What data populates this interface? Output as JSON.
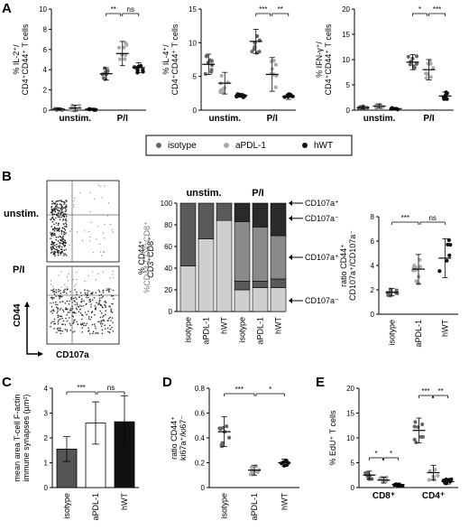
{
  "panels": {
    "A": "A",
    "B": "B",
    "C": "C",
    "D": "D",
    "E": "E"
  },
  "legend": [
    "isotype",
    "aPDL-1",
    "hWT"
  ],
  "colors": {
    "isotype": "#666666",
    "aPDL1": "#aaaaaa",
    "hWT": "#111111"
  },
  "flow": {
    "unstim_label": "unstim.",
    "pi_label": "P/I",
    "ylabel": "CD44",
    "xlabel": "CD107a"
  },
  "chart_data": [
    {
      "id": "A1",
      "type": "scatter",
      "title": "",
      "ylabel": [
        "% IL-2⁺/",
        "CD4⁺CD44⁺ T cells"
      ],
      "ylim": [
        0,
        10
      ],
      "yticks": [
        0,
        2,
        4,
        6,
        8,
        10
      ],
      "categories": [
        "unstim.",
        "P/I"
      ],
      "series_names": [
        "isotype",
        "aPDL-1",
        "hWT"
      ],
      "means": [
        [
          0.1,
          0.2,
          0.1
        ],
        [
          3.6,
          5.6,
          4.2
        ]
      ],
      "sd": [
        [
          0.1,
          0.3,
          0.1
        ],
        [
          0.6,
          1.2,
          0.5
        ]
      ],
      "sig": [
        {
          "from": [
            1,
            0
          ],
          "to": [
            1,
            1
          ],
          "label": "**"
        },
        {
          "from": [
            1,
            1
          ],
          "to": [
            1,
            2
          ],
          "label": "ns"
        }
      ]
    },
    {
      "id": "A2",
      "type": "scatter",
      "title": "",
      "ylabel": [
        "% IL-4⁺/",
        "CD4⁺CD44⁺ T cells"
      ],
      "ylim": [
        0,
        15
      ],
      "yticks": [
        0,
        5,
        10,
        15
      ],
      "categories": [
        "unstim.",
        "P/I"
      ],
      "series_names": [
        "isotype",
        "aPDL-1",
        "hWT"
      ],
      "means": [
        [
          6.8,
          4.0,
          2.2
        ],
        [
          10.2,
          5.3,
          2.0
        ]
      ],
      "sd": [
        [
          1.5,
          1.6,
          0.3
        ],
        [
          1.8,
          2.5,
          0.4
        ]
      ],
      "sig": [
        {
          "from": [
            1,
            0
          ],
          "to": [
            1,
            1
          ],
          "label": "***"
        },
        {
          "from": [
            1,
            1
          ],
          "to": [
            1,
            2
          ],
          "label": "**"
        }
      ]
    },
    {
      "id": "A3",
      "type": "scatter",
      "title": "",
      "ylabel": [
        "% IFN-γ⁺/",
        "CD4⁺CD44⁺ T cells"
      ],
      "ylim": [
        0,
        20
      ],
      "yticks": [
        0,
        5,
        10,
        15,
        20
      ],
      "categories": [
        "unstim.",
        "P/I"
      ],
      "series_names": [
        "isotype",
        "aPDL-1",
        "hWT"
      ],
      "means": [
        [
          0.5,
          0.8,
          0.3
        ],
        [
          9.5,
          8.0,
          2.8
        ]
      ],
      "sd": [
        [
          0.3,
          0.4,
          0.2
        ],
        [
          1.5,
          2.0,
          0.8
        ]
      ],
      "sig": [
        {
          "from": [
            1,
            0
          ],
          "to": [
            1,
            1
          ],
          "label": "*"
        },
        {
          "from": [
            1,
            1
          ],
          "to": [
            1,
            2
          ],
          "label": "***"
        }
      ]
    },
    {
      "id": "B2",
      "type": "bar",
      "title": "",
      "ylabel": [
        "% CD44⁺",
        "CD3⁺CD8⁺"
      ],
      "ylabel2": "%CD44-CD3⁺CD8⁺",
      "ylim": [
        0,
        100
      ],
      "yticks": [
        0,
        20,
        40,
        60,
        80,
        100
      ],
      "group_labels": [
        "unstim.",
        "P/I"
      ],
      "categories": [
        "isotype",
        "aPDL-1",
        "hWT",
        "isotype",
        "aPDL-1",
        "hWT"
      ],
      "stacks": [
        [
          42,
          58,
          0,
          0
        ],
        [
          67,
          33,
          0,
          0
        ],
        [
          84,
          16,
          0,
          0
        ],
        [
          20,
          8,
          55,
          17
        ],
        [
          22,
          6,
          50,
          22
        ],
        [
          22,
          8,
          40,
          30
        ]
      ],
      "segment_labels": [
        "CD107a⁺",
        "CD107a⁻",
        "CD107a⁺",
        "CD107a⁻"
      ]
    },
    {
      "id": "B3",
      "type": "scatter",
      "title": "",
      "ylabel": [
        "ratio CD44⁺",
        "CD107a⁺/CD107a⁻"
      ],
      "ylim": [
        0,
        8
      ],
      "yticks": [
        0,
        2,
        4,
        6,
        8
      ],
      "categories": [
        "isotype",
        "aPDL-1",
        "hWT"
      ],
      "means": [
        1.8,
        3.7,
        4.6
      ],
      "sd": [
        0.3,
        1.2,
        1.6
      ],
      "sig": [
        {
          "from": 0,
          "to": 1,
          "label": "***"
        },
        {
          "from": 1,
          "to": 2,
          "label": "ns"
        }
      ]
    },
    {
      "id": "C",
      "type": "bar",
      "title": "",
      "ylabel": [
        "mean area T-cell F-actin",
        "immune synapses (µm²)"
      ],
      "ylim": [
        0,
        4
      ],
      "yticks": [
        0,
        1,
        2,
        3,
        4
      ],
      "categories": [
        "isotype",
        "aPDL-1",
        "hWT"
      ],
      "values": [
        1.55,
        2.6,
        2.65
      ],
      "sd": [
        0.5,
        0.85,
        1.05
      ],
      "sig": [
        {
          "from": 0,
          "to": 1,
          "label": "***"
        },
        {
          "from": 1,
          "to": 2,
          "label": "ns"
        }
      ]
    },
    {
      "id": "D",
      "type": "scatter",
      "title": "",
      "ylabel": [
        "ratio CD44⁺",
        "ki67a⁺/ki67⁻"
      ],
      "ylim": [
        0,
        0.8
      ],
      "yticks": [
        0,
        0.2,
        0.4,
        0.6,
        0.8
      ],
      "categories": [
        "isotype",
        "aPDL-1",
        "hWT"
      ],
      "means": [
        0.45,
        0.14,
        0.2
      ],
      "sd": [
        0.12,
        0.04,
        0.03
      ],
      "sig": [
        {
          "from": 0,
          "to": 1,
          "label": "***"
        },
        {
          "from": 1,
          "to": 2,
          "label": "*"
        }
      ]
    },
    {
      "id": "E",
      "type": "scatter",
      "title": "",
      "ylabel": [
        "% EdU⁺ T cells"
      ],
      "ylim": [
        0,
        20
      ],
      "yticks": [
        0,
        5,
        10,
        15,
        20
      ],
      "categories": [
        "CD8⁺",
        "CD4⁺"
      ],
      "means": [
        [
          2.5,
          1.5,
          0.6
        ],
        [
          11.5,
          3.0,
          1.2
        ]
      ],
      "sd": [
        [
          0.8,
          0.6,
          0.3
        ],
        [
          2.5,
          1.5,
          0.5
        ]
      ],
      "sig": [
        {
          "from": [
            0,
            0
          ],
          "to": [
            0,
            1
          ],
          "label": "*"
        },
        {
          "from": [
            0,
            1
          ],
          "to": [
            0,
            2
          ],
          "label": "*"
        },
        {
          "from": [
            1,
            0
          ],
          "to": [
            1,
            1
          ],
          "label": "***"
        },
        {
          "from": [
            1,
            1
          ],
          "to": [
            1,
            2
          ],
          "label": "**"
        }
      ]
    }
  ]
}
